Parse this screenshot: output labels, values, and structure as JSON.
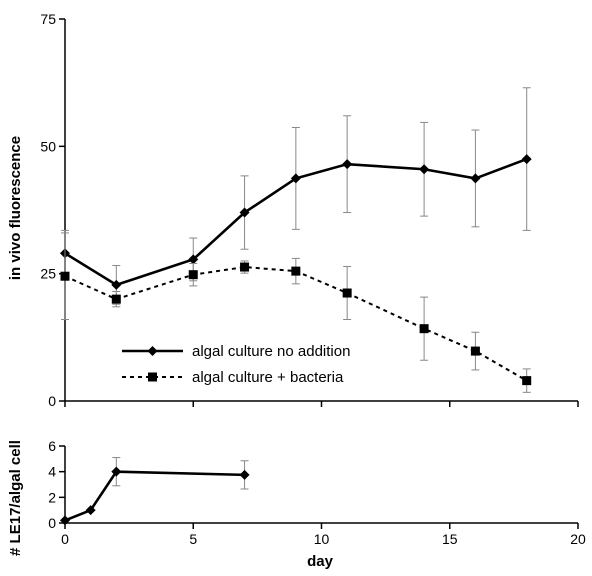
{
  "chart_data": [
    {
      "type": "line",
      "xlabel": "",
      "ylabel": "in vivo fluorescence",
      "xlim": [
        0,
        20
      ],
      "ylim": [
        0,
        75
      ],
      "yticks": [
        0,
        25,
        50,
        75
      ],
      "ytick_labels": [
        "0",
        "25",
        "50",
        "75"
      ],
      "grid": false,
      "legend_position": "bottom-left",
      "series": [
        {
          "name": "algal culture no addition",
          "style": "solid",
          "marker": "diamond",
          "color": "#000000",
          "x": [
            0,
            2,
            5,
            7,
            9,
            11,
            14,
            16,
            18
          ],
          "y": [
            29,
            22.8,
            27.8,
            37,
            43.7,
            46.5,
            45.5,
            43.7,
            47.5
          ],
          "err": [
            4.5,
            3.8,
            4.2,
            7.2,
            10,
            9.5,
            9.2,
            9.5,
            14
          ]
        },
        {
          "name": "algal culture + bacteria",
          "style": "dashed",
          "marker": "square",
          "color": "#000000",
          "x": [
            0,
            2,
            5,
            7,
            9,
            11,
            14,
            16,
            18
          ],
          "y": [
            24.5,
            20,
            24.8,
            26.3,
            25.5,
            21.2,
            14.2,
            9.8,
            4
          ],
          "err": [
            8.5,
            1.5,
            2.2,
            1.2,
            2.5,
            5.2,
            6.2,
            3.7,
            2.3
          ]
        }
      ]
    },
    {
      "type": "line",
      "xlabel": "day",
      "ylabel": "# LE17/algal cell",
      "xlim": [
        0,
        20
      ],
      "ylim": [
        0,
        6
      ],
      "xticks": [
        0,
        5,
        10,
        15,
        20
      ],
      "xtick_labels": [
        "0",
        "5",
        "10",
        "15",
        "20"
      ],
      "yticks": [
        0,
        2,
        4,
        6
      ],
      "ytick_labels": [
        "0",
        "2",
        "4",
        "6"
      ],
      "grid": false,
      "series": [
        {
          "name": "",
          "style": "solid",
          "marker": "diamond",
          "color": "#000000",
          "x": [
            0,
            1,
            2,
            7
          ],
          "y": [
            0.2,
            1,
            4,
            3.75
          ],
          "err": [
            0,
            0,
            1.1,
            1.1
          ]
        }
      ]
    }
  ]
}
